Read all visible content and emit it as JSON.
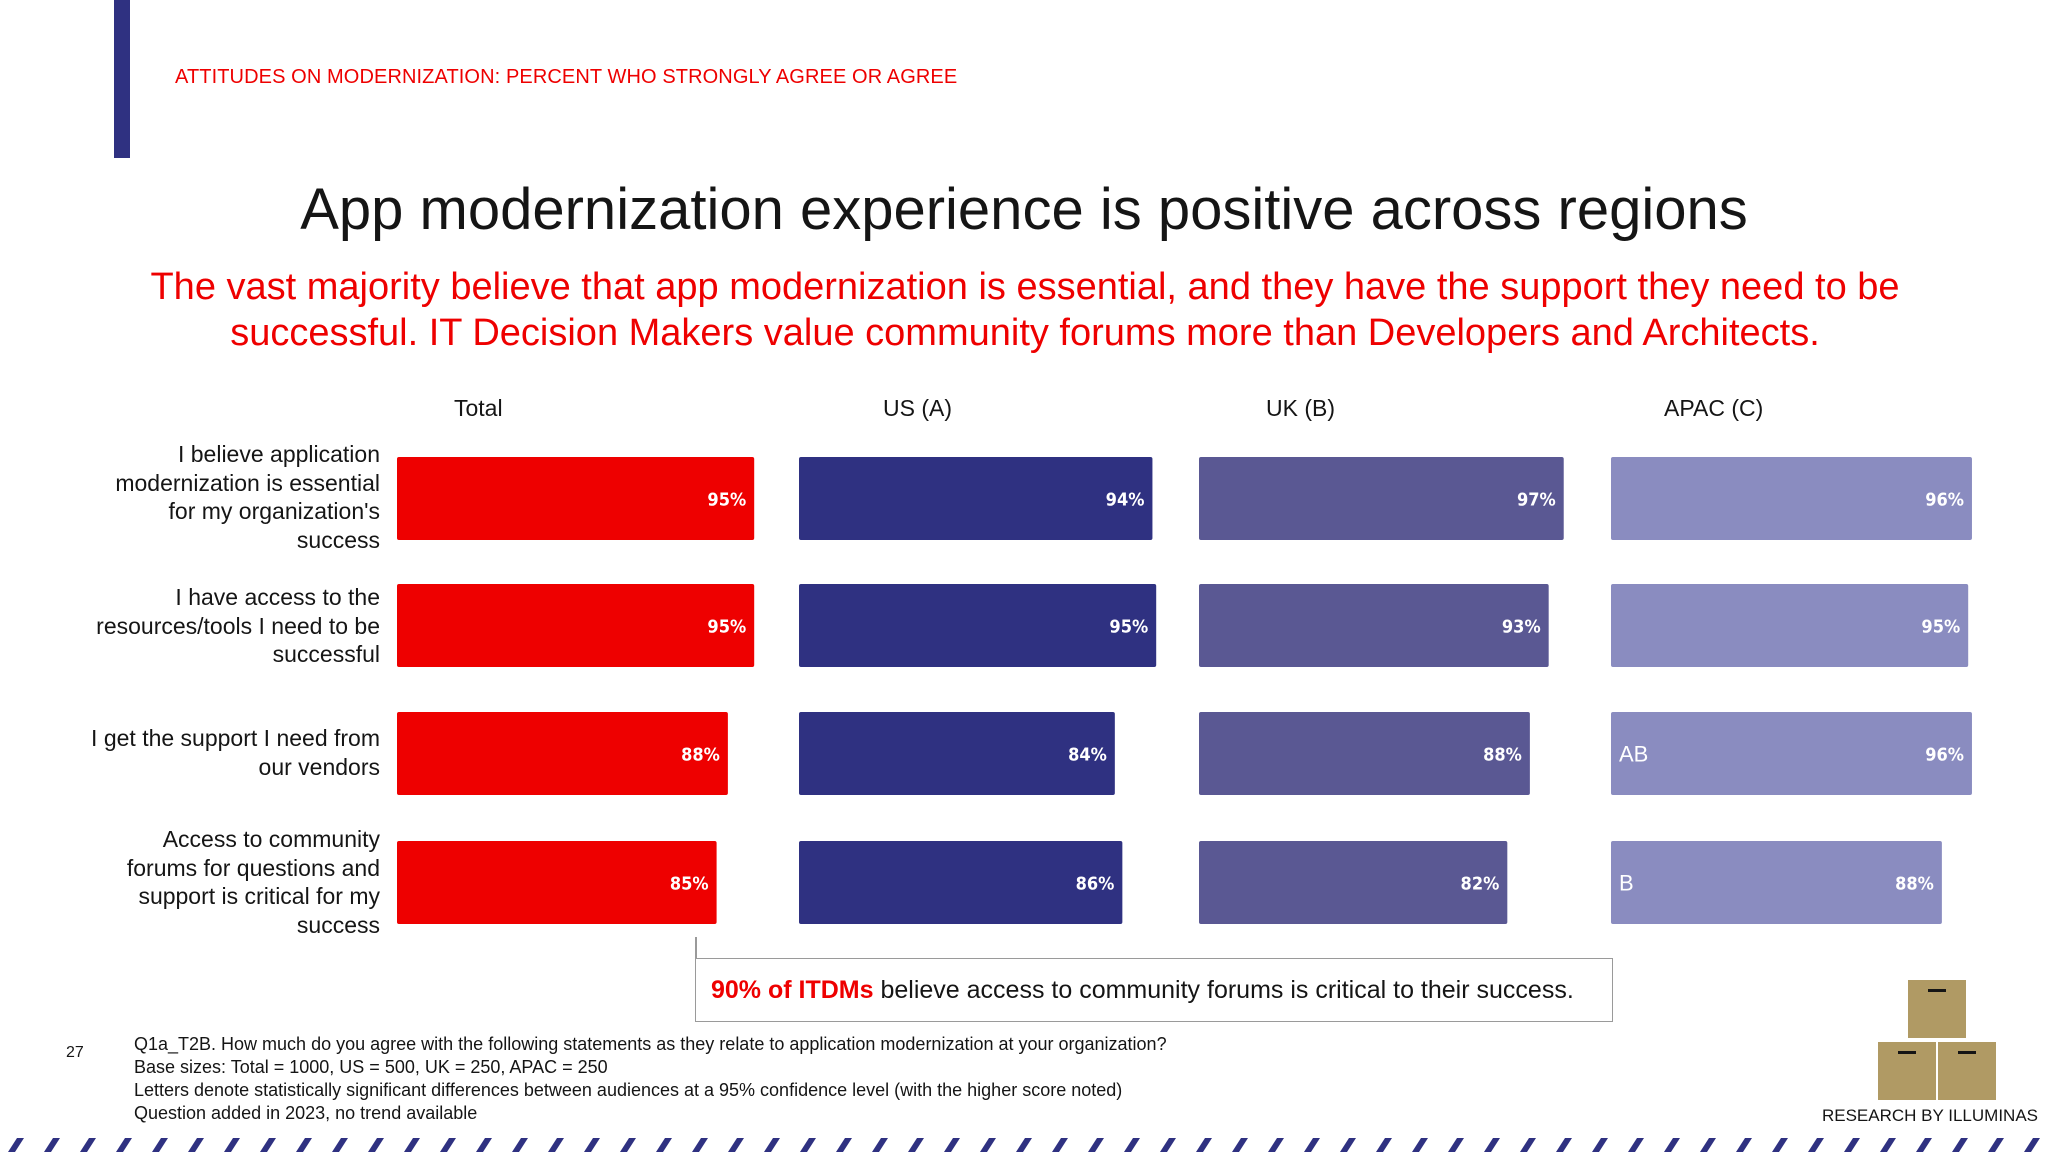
{
  "header": {
    "section_label": "ATTITUDES ON MODERNIZATION: PERCENT WHO STRONGLY AGREE OR AGREE",
    "title": "App modernization experience is positive across regions",
    "subtitle": "The vast majority believe that app modernization is essential, and they have the support they need to be successful. IT Decision Makers value community forums more than Developers and Architects."
  },
  "chart_data": {
    "type": "bar",
    "orientation": "horizontal",
    "categories": [
      "I believe application modernization is essential for my organization's success",
      "I have access to the resources/tools I need to be successful",
      "I get the support I need from our vendors",
      "Access to community forums for questions and support is critical for my success"
    ],
    "series": [
      {
        "name": "Total",
        "color": "#ee0000",
        "values": [
          95,
          95,
          88,
          85
        ],
        "labels": [
          "95%",
          "95%",
          "88%",
          "85%"
        ],
        "sig": [
          "",
          "",
          "",
          ""
        ]
      },
      {
        "name": "US (A)",
        "color": "#2f3181",
        "values": [
          94,
          95,
          84,
          86
        ],
        "labels": [
          "94%",
          "95%",
          "84%",
          "86%"
        ],
        "sig": [
          "",
          "",
          "",
          ""
        ]
      },
      {
        "name": "UK (B)",
        "color": "#5a5893",
        "values": [
          97,
          93,
          88,
          82
        ],
        "labels": [
          "97%",
          "93%",
          "88%",
          "82%"
        ],
        "sig": [
          "",
          "",
          "",
          ""
        ]
      },
      {
        "name": "APAC (C)",
        "color": "#8a8cc0",
        "values": [
          96,
          95,
          96,
          88
        ],
        "labels": [
          "96%",
          "95%",
          "96%",
          "88%"
        ],
        "sig": [
          "",
          "",
          "AB",
          "B"
        ]
      }
    ],
    "label_color": "#ffffff"
  },
  "callout": {
    "bold": "90% of ITDMs",
    "text": " believe access to community forums is critical to their success."
  },
  "footer": {
    "page_number": "27",
    "notes": [
      "Q1a_T2B. How much do you agree with the following statements as they relate to application modernization at your organization?",
      "Base sizes: Total = 1000, US = 500, UK = 250, APAC = 250",
      "Letters denote statistically significant differences between audiences at a 95% confidence level (with the higher score noted)",
      "Question added in 2023, no trend available"
    ],
    "credit": "RESEARCH BY ILLUMINAS"
  },
  "colors": {
    "accent_red": "#ee0000",
    "accent_navy": "#2f3181",
    "box_tan": "#b09a64"
  }
}
